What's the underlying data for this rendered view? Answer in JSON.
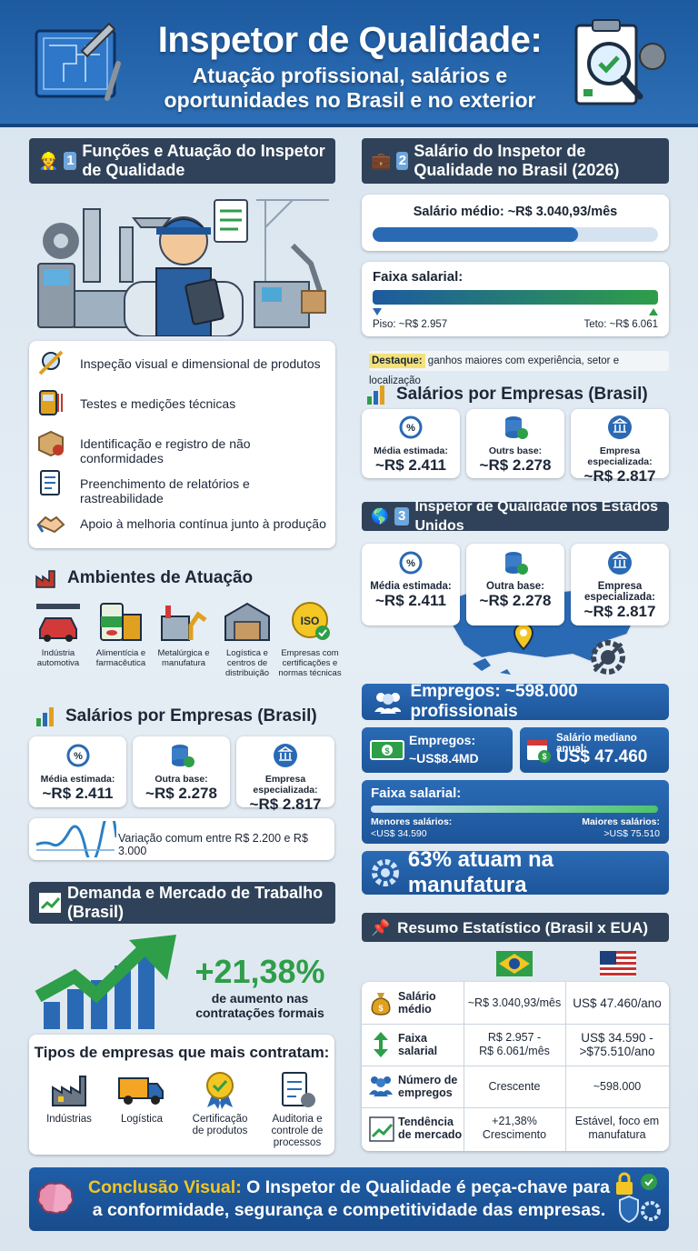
{
  "header": {
    "title": "Inspetor de Qualidade:",
    "subtitle_1": "Atuação profissional, salários e",
    "subtitle_2": "oportunidades no Brasil e no exterior"
  },
  "s1": {
    "num": "1",
    "title": "Funções e Atuação do Inspetor de Qualidade",
    "items": [
      "Inspeção visual e dimensional de produtos",
      "Testes e medições técnicas",
      "Identificação e registro de não conformidades",
      "Preenchimento de relatórios e rastreabilidade",
      "Apoio à melhoria contínua junto à produção"
    ]
  },
  "ambientes": {
    "title": "Ambientes de Atuação",
    "items": [
      [
        "Indústria",
        "automotiva"
      ],
      [
        "Alimentícia e",
        "farmacêutica"
      ],
      [
        "Metalúrgica e",
        "manufatura"
      ],
      [
        "Logística e",
        "centros de",
        "distribuição"
      ],
      [
        "Empresas com",
        "certificações e",
        "normas técnicas"
      ]
    ],
    "badge": "ISO"
  },
  "sal_left": {
    "title": "Salários por Empresas (Brasil)",
    "cards": [
      {
        "label": "Média estimada:",
        "value": "~R$ 2.411"
      },
      {
        "label": "Outra base:",
        "value": "~R$ 2.278"
      },
      {
        "label": "Empresa especializada:",
        "value": "~R$ 2.817"
      }
    ],
    "variation": "Variação comum entre R$ 2.200 e R$ 3.000"
  },
  "demanda": {
    "title": "Demanda e Mercado de Trabalho (Brasil)",
    "percent": "+21,38%",
    "desc_1": "de aumento nas",
    "desc_2": "contratações formais",
    "types_title": "Tipos de empresas que mais contratam:",
    "types": [
      [
        "Indústrias"
      ],
      [
        "Logística"
      ],
      [
        "Certificação",
        "de produtos"
      ],
      [
        "Auditoria e",
        "controle de",
        "processos"
      ]
    ]
  },
  "s2": {
    "num": "2",
    "title": "Salário do Inspetor de Qualidade no Brasil (2026)",
    "media": "Salário médio: ~R$ 3.040,93/mês",
    "media_fill": 0.72,
    "faixa_title": "Faixa salarial:",
    "piso": "Piso: ~R$ 2.957",
    "teto": "Teto: ~R$ 6.061",
    "destaque_label": "Destaque:",
    "destaque_text": " ganhos maiores com experiência, setor e localização"
  },
  "sal_right": {
    "title": "Salários por Empresas (Brasil)",
    "cards": [
      {
        "label": "Média estimada:",
        "value": "~R$ 2.411"
      },
      {
        "label": "Outrs base:",
        "value": "~R$ 2.278"
      },
      {
        "label": "Empresa especializada:",
        "value": "~R$ 2.817"
      }
    ]
  },
  "s3": {
    "num": "3",
    "title": "Inspetor de Qualidade nos Estados Unidos",
    "cards": [
      {
        "label": "Média estimada:",
        "value": "~R$ 2.411"
      },
      {
        "label": "Outra base:",
        "value": "~R$ 2.278"
      },
      {
        "label": "Empresa especializada:",
        "value": "~R$ 2.817"
      }
    ],
    "empregos": "Empregos: ~598.000 profissionais",
    "emp_small_label": "Empregos:",
    "emp_small_value": "~US$8.4MD",
    "mediano_label": "Salário mediano anual:",
    "mediano_value": "US$ 47.460",
    "faixa_title": "Faixa salarial:",
    "menores_label": "Menores salários:",
    "menores_value": "<US$ 34.590",
    "maiores_label": "Maiores salários:",
    "maiores_value": ">US$ 75.510",
    "manufatura": "63% atuam na manufatura"
  },
  "resumo": {
    "title": "Resumo Estatístico (Brasil x EUA)",
    "rows": [
      {
        "label": [
          "Salário",
          "médio"
        ],
        "br": [
          "~R$ 3.040,93/mês"
        ],
        "us": [
          "US$ 47.460/ano"
        ]
      },
      {
        "label": [
          "Faixa",
          "salarial"
        ],
        "br": [
          "R$ 2.957 -",
          "R$ 6.061/mês"
        ],
        "us": [
          "US$ 34.590 -",
          ">$75.510/ano"
        ]
      },
      {
        "label": [
          "Número de",
          "empregos"
        ],
        "br": [
          "Crescente"
        ],
        "us": [
          "~598.000"
        ]
      },
      {
        "label": [
          "Tendência",
          "de mercado"
        ],
        "br": [
          "+21,38%",
          "Crescimento"
        ],
        "us": [
          "Estável, foco em",
          "manufatura"
        ]
      }
    ]
  },
  "conclusao": {
    "label": "Conclusão Visual:",
    "text_1": " O Inspetor de Qualidade é peça-chave para",
    "text_2": "a conformidade, segurança e competitividade das empresas."
  },
  "colors": {
    "blue": "#2a6ab5",
    "dark": "#2f4259",
    "green": "#2e9e48",
    "yellow": "#f3c623"
  }
}
